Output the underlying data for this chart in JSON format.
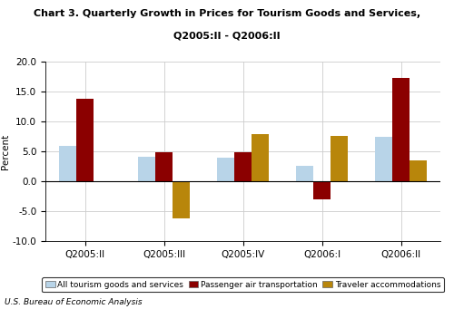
{
  "title_line1": "Chart 3. Quarterly Growth in Prices for Tourism Goods and Services,",
  "title_line2": "Q2005:II - Q2006:II",
  "quarters": [
    "Q2005:II",
    "Q2005:III",
    "Q2005:IV",
    "Q2006:I",
    "Q2006:II"
  ],
  "series": {
    "All tourism goods and services": [
      5.9,
      4.1,
      3.9,
      2.6,
      7.5
    ],
    "Passenger air transportation": [
      13.8,
      4.9,
      4.8,
      -3.0,
      17.3
    ],
    "Traveler accommodations": [
      null,
      -6.2,
      7.9,
      7.6,
      3.5
    ]
  },
  "colors": {
    "All tourism goods and services": "#b8d4e8",
    "Passenger air transportation": "#8b0000",
    "Traveler accommodations": "#b8860b"
  },
  "ylim": [
    -10.0,
    20.0
  ],
  "yticks": [
    -10.0,
    -5.0,
    0.0,
    5.0,
    10.0,
    15.0,
    20.0
  ],
  "ylabel": "Percent",
  "footnote": "U.S. Bureau of Economic Analysis",
  "bar_width": 0.22,
  "legend_labels": [
    "All tourism goods and services",
    "Passenger air transportation",
    "Traveler accommodations"
  ]
}
